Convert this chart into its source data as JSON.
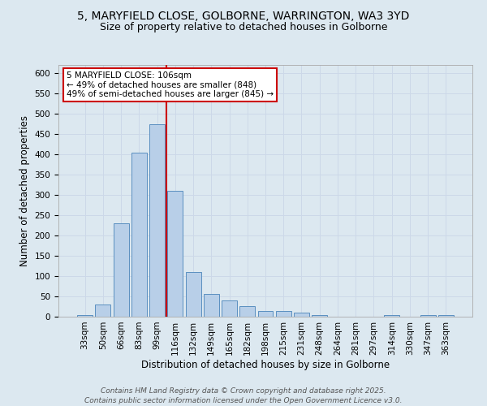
{
  "title_line1": "5, MARYFIELD CLOSE, GOLBORNE, WARRINGTON, WA3 3YD",
  "title_line2": "Size of property relative to detached houses in Golborne",
  "xlabel": "Distribution of detached houses by size in Golborne",
  "ylabel": "Number of detached properties",
  "bar_labels": [
    "33sqm",
    "50sqm",
    "66sqm",
    "83sqm",
    "99sqm",
    "116sqm",
    "132sqm",
    "149sqm",
    "165sqm",
    "182sqm",
    "198sqm",
    "215sqm",
    "231sqm",
    "248sqm",
    "264sqm",
    "281sqm",
    "297sqm",
    "314sqm",
    "330sqm",
    "347sqm",
    "363sqm"
  ],
  "bar_values": [
    5,
    30,
    230,
    405,
    475,
    310,
    110,
    57,
    40,
    27,
    15,
    15,
    10,
    4,
    0,
    0,
    0,
    4,
    0,
    4,
    4
  ],
  "bar_color": "#b8cfe8",
  "bar_edge_color": "#5a8fc0",
  "grid_color": "#ccd8e8",
  "background_color": "#dce8f0",
  "vline_color": "#cc0000",
  "annotation_text": "5 MARYFIELD CLOSE: 106sqm\n← 49% of detached houses are smaller (848)\n49% of semi-detached houses are larger (845) →",
  "annotation_box_color": "#ffffff",
  "annotation_border_color": "#cc0000",
  "ylim": [
    0,
    620
  ],
  "yticks": [
    0,
    50,
    100,
    150,
    200,
    250,
    300,
    350,
    400,
    450,
    500,
    550,
    600
  ],
  "footer_text": "Contains HM Land Registry data © Crown copyright and database right 2025.\nContains public sector information licensed under the Open Government Licence v3.0.",
  "title_fontsize": 10,
  "subtitle_fontsize": 9,
  "axis_label_fontsize": 8.5,
  "tick_fontsize": 7.5,
  "annotation_fontsize": 7.5,
  "footer_fontsize": 6.5
}
